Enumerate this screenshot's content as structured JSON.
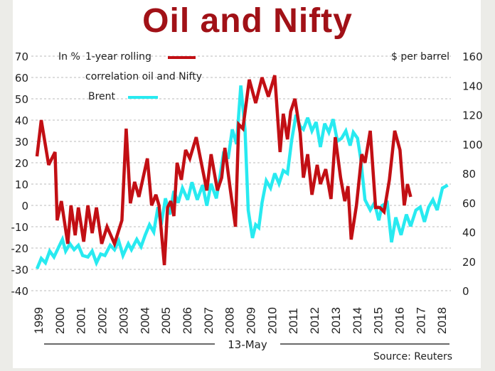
{
  "title": "Oil and Nifty",
  "colors": {
    "correlation": "#c20f14",
    "brent": "#28eaf0",
    "title": "#a11117",
    "grid": "#bbbbbb"
  },
  "chart_data": {
    "type": "line",
    "title": "Oil and Nifty",
    "left_axis": {
      "label": "In %",
      "range": [
        -40,
        70
      ],
      "ticks": [
        "70",
        "60",
        "50",
        "40",
        "30",
        "20",
        "10",
        "0",
        "-10",
        "-20",
        "-30",
        "-40"
      ]
    },
    "right_axis": {
      "label": "$ per barrel",
      "range": [
        0,
        160
      ],
      "ticks": [
        "160",
        "140",
        "120",
        "100",
        "80",
        "60",
        "40",
        "20",
        "0"
      ]
    },
    "x_ticks": [
      "1999",
      "2000",
      "2001",
      "2002",
      "2003",
      "2004",
      "2005",
      "2006",
      "2007",
      "2008",
      "2009",
      "2010",
      "2011",
      "2012",
      "2013",
      "2014",
      "2015",
      "2016",
      "2017",
      "2018"
    ],
    "xlabel": "13-May",
    "grid": true,
    "legend": [
      {
        "name_line1": "1-year rolling",
        "name_line2": "correlation oil and Nifty",
        "axis": "left"
      },
      {
        "name_line1": "Brent",
        "axis": "right"
      }
    ],
    "source": "Source: Reuters",
    "series": [
      {
        "name": "1-year rolling correlation oil and Nifty",
        "axis": "left",
        "points": [
          [
            1999.0,
            23
          ],
          [
            1999.2,
            40
          ],
          [
            1999.55,
            19
          ],
          [
            1999.85,
            25
          ],
          [
            1999.95,
            -7
          ],
          [
            2000.15,
            2
          ],
          [
            2000.45,
            -18
          ],
          [
            2000.6,
            0
          ],
          [
            2000.8,
            -14
          ],
          [
            2000.95,
            -1
          ],
          [
            2001.2,
            -17
          ],
          [
            2001.4,
            0
          ],
          [
            2001.6,
            -13
          ],
          [
            2001.8,
            -1
          ],
          [
            2002.05,
            -18
          ],
          [
            2002.3,
            -10
          ],
          [
            2002.65,
            -18
          ],
          [
            2003.0,
            -7
          ],
          [
            2003.2,
            36
          ],
          [
            2003.4,
            1
          ],
          [
            2003.6,
            11
          ],
          [
            2003.8,
            4
          ],
          [
            2004.2,
            22
          ],
          [
            2004.4,
            0
          ],
          [
            2004.6,
            5
          ],
          [
            2004.75,
            0
          ],
          [
            2005.0,
            -28
          ],
          [
            2005.15,
            -1
          ],
          [
            2005.3,
            2
          ],
          [
            2005.45,
            -5
          ],
          [
            2005.6,
            20
          ],
          [
            2005.8,
            12
          ],
          [
            2006.0,
            26
          ],
          [
            2006.2,
            22
          ],
          [
            2006.5,
            32
          ],
          [
            2006.8,
            17
          ],
          [
            2007.0,
            7
          ],
          [
            2007.2,
            24
          ],
          [
            2007.5,
            7
          ],
          [
            2007.7,
            13
          ],
          [
            2007.85,
            27
          ],
          [
            2008.1,
            8
          ],
          [
            2008.35,
            -10
          ],
          [
            2008.5,
            38
          ],
          [
            2008.7,
            36
          ],
          [
            2009.0,
            59
          ],
          [
            2009.3,
            48
          ],
          [
            2009.6,
            60
          ],
          [
            2009.9,
            51
          ],
          [
            2010.2,
            61
          ],
          [
            2010.45,
            25
          ],
          [
            2010.6,
            43
          ],
          [
            2010.8,
            31
          ],
          [
            2010.95,
            44
          ],
          [
            2011.15,
            50
          ],
          [
            2011.4,
            34
          ],
          [
            2011.55,
            13
          ],
          [
            2011.75,
            24
          ],
          [
            2011.95,
            5
          ],
          [
            2012.2,
            19
          ],
          [
            2012.35,
            10
          ],
          [
            2012.6,
            17
          ],
          [
            2012.85,
            3
          ],
          [
            2013.05,
            32
          ],
          [
            2013.3,
            13
          ],
          [
            2013.5,
            2
          ],
          [
            2013.65,
            9
          ],
          [
            2013.8,
            -16
          ],
          [
            2014.05,
            0
          ],
          [
            2014.3,
            24
          ],
          [
            2014.45,
            20
          ],
          [
            2014.7,
            35
          ],
          [
            2014.95,
            -1
          ],
          [
            2015.15,
            -1
          ],
          [
            2015.35,
            -3
          ],
          [
            2015.6,
            12
          ],
          [
            2015.85,
            35
          ],
          [
            2016.1,
            26
          ],
          [
            2016.3,
            0
          ],
          [
            2016.45,
            10
          ],
          [
            2016.6,
            4
          ]
        ]
      },
      {
        "name": "Brent",
        "axis": "right",
        "points": [
          [
            1999.0,
            15
          ],
          [
            1999.2,
            22
          ],
          [
            1999.4,
            19
          ],
          [
            1999.6,
            27
          ],
          [
            1999.8,
            23
          ],
          [
            2000.0,
            29
          ],
          [
            2000.2,
            35
          ],
          [
            2000.35,
            27
          ],
          [
            2000.55,
            32
          ],
          [
            2000.75,
            28
          ],
          [
            2000.95,
            31
          ],
          [
            2001.15,
            24
          ],
          [
            2001.4,
            23
          ],
          [
            2001.6,
            27
          ],
          [
            2001.8,
            19
          ],
          [
            2002.0,
            25
          ],
          [
            2002.2,
            24
          ],
          [
            2002.45,
            31
          ],
          [
            2002.65,
            28
          ],
          [
            2002.85,
            34
          ],
          [
            2003.05,
            24
          ],
          [
            2003.3,
            32
          ],
          [
            2003.45,
            28
          ],
          [
            2003.7,
            35
          ],
          [
            2003.9,
            30
          ],
          [
            2004.1,
            38
          ],
          [
            2004.3,
            45
          ],
          [
            2004.5,
            40
          ],
          [
            2004.7,
            57
          ],
          [
            2004.85,
            45
          ],
          [
            2005.05,
            63
          ],
          [
            2005.25,
            52
          ],
          [
            2005.45,
            68
          ],
          [
            2005.65,
            60
          ],
          [
            2005.85,
            70
          ],
          [
            2006.1,
            62
          ],
          [
            2006.3,
            74
          ],
          [
            2006.55,
            62
          ],
          [
            2006.8,
            72
          ],
          [
            2007.0,
            58
          ],
          [
            2007.2,
            73
          ],
          [
            2007.45,
            63
          ],
          [
            2007.6,
            76
          ],
          [
            2007.8,
            95
          ],
          [
            2008.0,
            90
          ],
          [
            2008.2,
            110
          ],
          [
            2008.4,
            100
          ],
          [
            2008.6,
            140
          ],
          [
            2008.8,
            110
          ],
          [
            2008.95,
            55
          ],
          [
            2009.15,
            36
          ],
          [
            2009.3,
            45
          ],
          [
            2009.45,
            43
          ],
          [
            2009.6,
            60
          ],
          [
            2009.8,
            75
          ],
          [
            2010.0,
            70
          ],
          [
            2010.2,
            80
          ],
          [
            2010.4,
            73
          ],
          [
            2010.6,
            82
          ],
          [
            2010.8,
            80
          ],
          [
            2011.0,
            103
          ],
          [
            2011.2,
            120
          ],
          [
            2011.4,
            112
          ],
          [
            2011.55,
            110
          ],
          [
            2011.75,
            118
          ],
          [
            2011.95,
            109
          ],
          [
            2012.15,
            115
          ],
          [
            2012.35,
            98
          ],
          [
            2012.55,
            114
          ],
          [
            2012.75,
            108
          ],
          [
            2012.95,
            117
          ],
          [
            2013.15,
            102
          ],
          [
            2013.35,
            104
          ],
          [
            2013.55,
            109
          ],
          [
            2013.75,
            99
          ],
          [
            2013.9,
            108
          ],
          [
            2014.1,
            104
          ],
          [
            2014.25,
            90
          ],
          [
            2014.45,
            62
          ],
          [
            2014.7,
            55
          ],
          [
            2014.9,
            60
          ],
          [
            2015.1,
            48
          ],
          [
            2015.25,
            58
          ],
          [
            2015.5,
            60
          ],
          [
            2015.7,
            33
          ],
          [
            2015.9,
            50
          ],
          [
            2016.15,
            38
          ],
          [
            2016.4,
            52
          ],
          [
            2016.6,
            44
          ],
          [
            2016.85,
            55
          ],
          [
            2017.05,
            57
          ],
          [
            2017.25,
            47
          ],
          [
            2017.45,
            57
          ],
          [
            2017.65,
            62
          ],
          [
            2017.85,
            55
          ],
          [
            2018.1,
            70
          ],
          [
            2018.35,
            72
          ]
        ]
      }
    ]
  }
}
